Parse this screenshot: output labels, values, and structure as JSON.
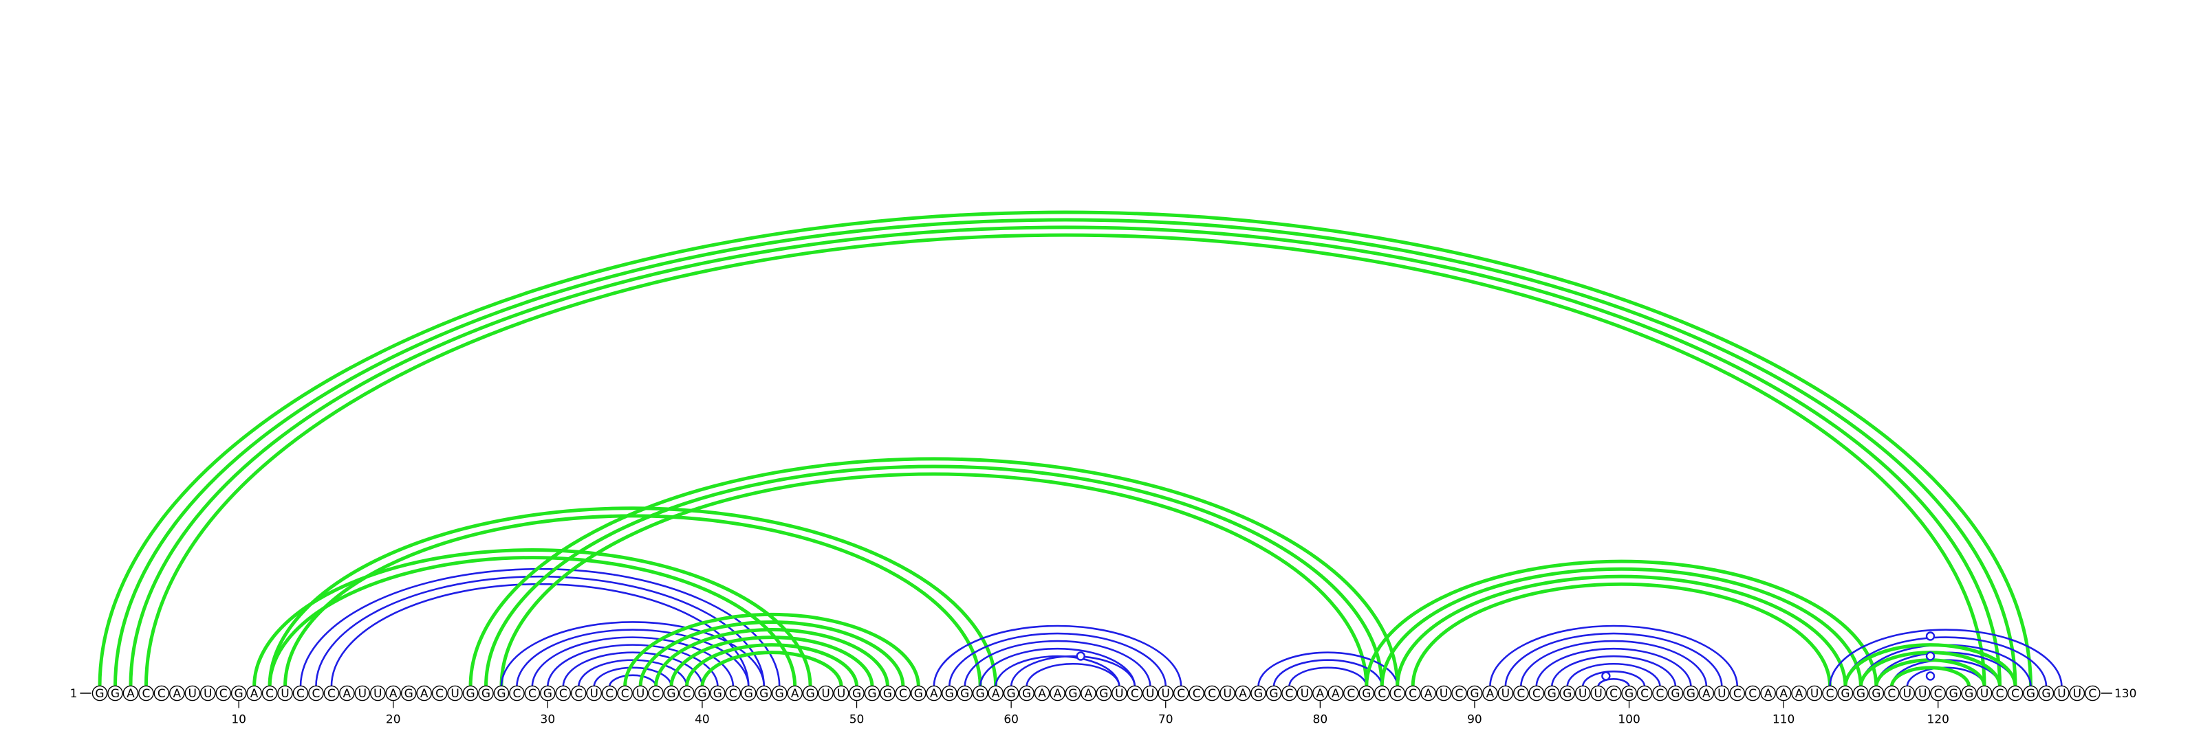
{
  "chart_data": {
    "type": "arc",
    "sequence": "GGACCAUUCGACUCCCAUUAGACUGGGCCGCCUCCUCGCGGCGGGAGUUGGGCGAGGGAGGAAGAGUCUUCCCUAGGCUAACGCCCAUCGAUCCGGUUCGCCGGAUCCAAAUCGGGCUUCGGUCCGGUUC",
    "length": 130,
    "start_label": "1",
    "end_label": "130",
    "ticks": [
      "10",
      "20",
      "30",
      "40",
      "50",
      "60",
      "70",
      "80",
      "90",
      "100",
      "110",
      "120"
    ],
    "colors": {
      "blue": "#1f1fe6",
      "green": "#22e51f",
      "nucleotide_stroke": "#000000"
    },
    "pair_groups": [
      {
        "color": "green",
        "start": 1,
        "partner_end": 126,
        "count": 4
      },
      {
        "color": "green",
        "start": 11,
        "partner_end": 47,
        "count": 2
      },
      {
        "color": "green",
        "start": 12,
        "partner_end": 59,
        "count": 2
      },
      {
        "color": "blue",
        "start": 14,
        "partner_end": 45,
        "count": 3
      },
      {
        "color": "green",
        "start": 25,
        "partner_end": 85,
        "count": 3
      },
      {
        "color": "blue",
        "start": 27,
        "partner_end": 44,
        "count": 4
      },
      {
        "color": "blue",
        "start": 31,
        "partner_end": 40,
        "count": 4
      },
      {
        "color": "green",
        "start": 35,
        "partner_end": 54,
        "count": 2
      },
      {
        "color": "green",
        "start": 37,
        "partner_end": 52,
        "count": 4
      },
      {
        "color": "blue",
        "start": 55,
        "partner_end": 71,
        "count": 5
      },
      {
        "color": "blue",
        "start": 60,
        "partner_end": 68,
        "count": 2
      },
      {
        "color": "blue",
        "start": 76,
        "partner_end": 85,
        "count": 3
      },
      {
        "color": "green",
        "start": 83,
        "partner_end": 116,
        "count": 4
      },
      {
        "color": "blue",
        "start": 91,
        "partner_end": 107,
        "count": 9
      },
      {
        "color": "blue",
        "start": 113,
        "partner_end": 128,
        "count": 6
      },
      {
        "color": "green",
        "start": 114,
        "partner_end": 125,
        "count": 4
      }
    ],
    "unpaired_markers": [
      {
        "color": "blue",
        "position": 64.5,
        "level": 1
      },
      {
        "color": "blue",
        "position": 98.5,
        "level": 0
      },
      {
        "color": "blue",
        "position": 119.5,
        "level": 0
      },
      {
        "color": "blue",
        "position": 119.5,
        "level": 1
      },
      {
        "color": "blue",
        "position": 119.5,
        "level": 2
      }
    ]
  }
}
